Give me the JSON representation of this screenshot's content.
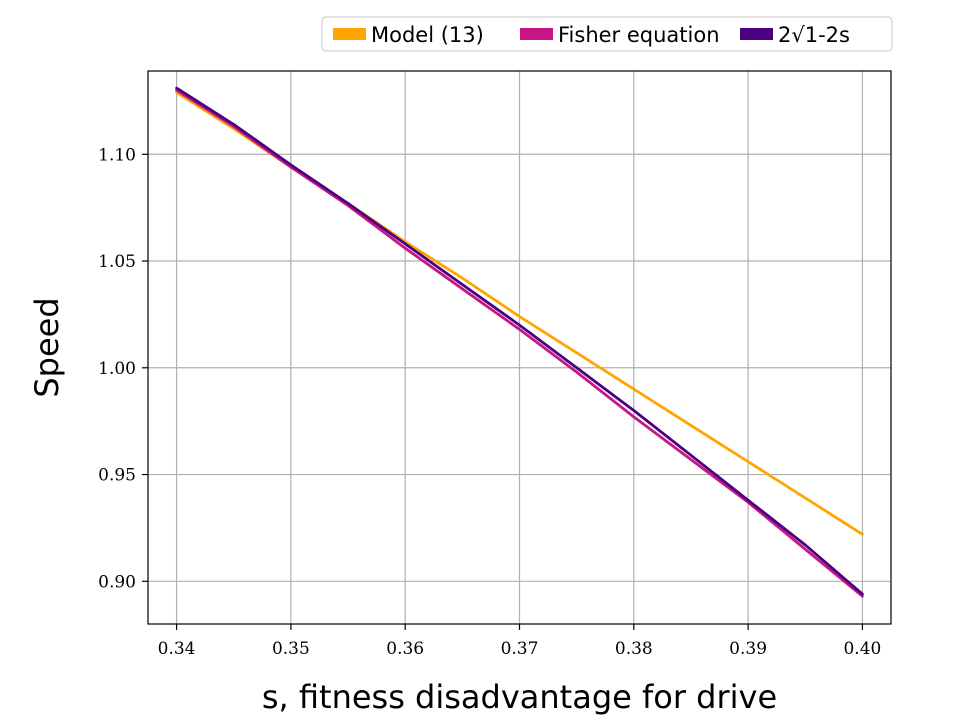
{
  "chart_data": {
    "type": "line",
    "xlabel": "s, fitness disadvantage for drive",
    "ylabel": "Speed",
    "xlim": [
      0.3375,
      0.4025
    ],
    "ylim": [
      0.88,
      1.139
    ],
    "xticks": [
      0.34,
      0.35,
      0.36,
      0.37,
      0.38,
      0.39,
      0.4
    ],
    "xtick_labels": [
      "0.34",
      "0.35",
      "0.36",
      "0.37",
      "0.38",
      "0.39",
      "0.40"
    ],
    "yticks": [
      0.9,
      0.95,
      1.0,
      1.05,
      1.1
    ],
    "ytick_labels": [
      "0.90",
      "0.95",
      "1.00",
      "1.05",
      "1.10"
    ],
    "grid": true,
    "legend_position": "top-right, above plot",
    "series": [
      {
        "name": "Model (13)",
        "color": "#FFA500",
        "x": [
          0.34,
          0.345,
          0.35,
          0.355,
          0.36,
          0.365,
          0.37,
          0.375,
          0.38,
          0.385,
          0.39,
          0.395,
          0.4
        ],
        "y": [
          1.129,
          1.112,
          1.094,
          1.077,
          1.059,
          1.042,
          1.024,
          1.007,
          0.99,
          0.973,
          0.956,
          0.939,
          0.922
        ]
      },
      {
        "name": "Fisher equation",
        "color": "#C71585",
        "x": [
          0.34,
          0.345,
          0.35,
          0.355,
          0.36,
          0.365,
          0.37,
          0.375,
          0.38,
          0.385,
          0.39,
          0.395,
          0.4
        ],
        "y": [
          1.13,
          1.113,
          1.094,
          1.076,
          1.056,
          1.037,
          1.018,
          0.998,
          0.977,
          0.957,
          0.937,
          0.915,
          0.893
        ]
      },
      {
        "name": "2√1-2s",
        "color": "#4B0082",
        "x": [
          0.34,
          0.345,
          0.35,
          0.355,
          0.36,
          0.365,
          0.37,
          0.375,
          0.38,
          0.385,
          0.39,
          0.395,
          0.4
        ],
        "y": [
          1.131,
          1.114,
          1.095,
          1.077,
          1.058,
          1.039,
          1.02,
          1.0,
          0.98,
          0.959,
          0.938,
          0.917,
          0.894
        ]
      }
    ]
  }
}
